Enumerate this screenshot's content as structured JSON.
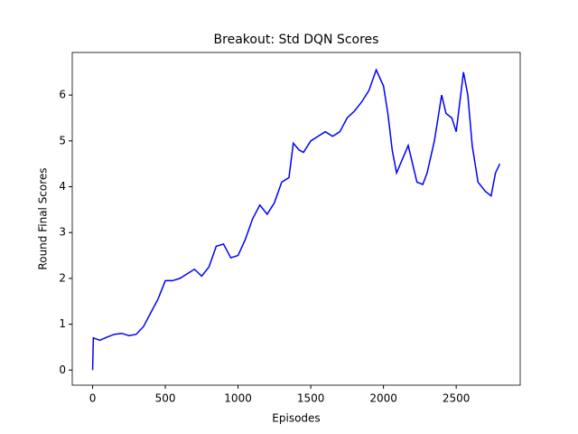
{
  "chart_data": {
    "type": "line",
    "title": "Breakout: Std DQN Scores",
    "x_label": "Episodes",
    "y_label": "Round Final Scores",
    "x": [
      0,
      5,
      50,
      100,
      150,
      200,
      250,
      300,
      350,
      400,
      450,
      500,
      550,
      600,
      650,
      700,
      750,
      800,
      850,
      900,
      950,
      1000,
      1050,
      1100,
      1150,
      1200,
      1250,
      1300,
      1350,
      1380,
      1420,
      1450,
      1500,
      1550,
      1600,
      1650,
      1700,
      1750,
      1800,
      1850,
      1900,
      1950,
      2000,
      2030,
      2060,
      2090,
      2130,
      2170,
      2200,
      2230,
      2270,
      2300,
      2350,
      2400,
      2430,
      2470,
      2500,
      2550,
      2580,
      2610,
      2650,
      2700,
      2740,
      2770,
      2800
    ],
    "series": [
      {
        "name": "Scores",
        "color": "#0000ff",
        "values": [
          0.0,
          0.7,
          0.65,
          0.72,
          0.78,
          0.8,
          0.75,
          0.78,
          0.95,
          1.25,
          1.55,
          1.95,
          1.95,
          2.0,
          2.1,
          2.2,
          2.05,
          2.25,
          2.7,
          2.75,
          2.45,
          2.5,
          2.85,
          3.3,
          3.6,
          3.4,
          3.65,
          4.1,
          4.2,
          4.95,
          4.8,
          4.75,
          5.0,
          5.1,
          5.2,
          5.1,
          5.2,
          5.5,
          5.65,
          5.85,
          6.1,
          6.55,
          6.2,
          5.6,
          4.8,
          4.3,
          4.6,
          4.9,
          4.5,
          4.1,
          4.05,
          4.3,
          5.0,
          6.0,
          5.6,
          5.5,
          5.2,
          6.5,
          6.0,
          4.9,
          4.1,
          3.9,
          3.8,
          4.3,
          4.5
        ]
      }
    ],
    "xlim": [
      -140,
      2940
    ],
    "xticks": [
      0,
      500,
      1000,
      1500,
      2000,
      2500
    ],
    "ylim": [
      -0.33,
      6.93
    ],
    "yticks": [
      0,
      1,
      2,
      3,
      4,
      5,
      6
    ]
  }
}
